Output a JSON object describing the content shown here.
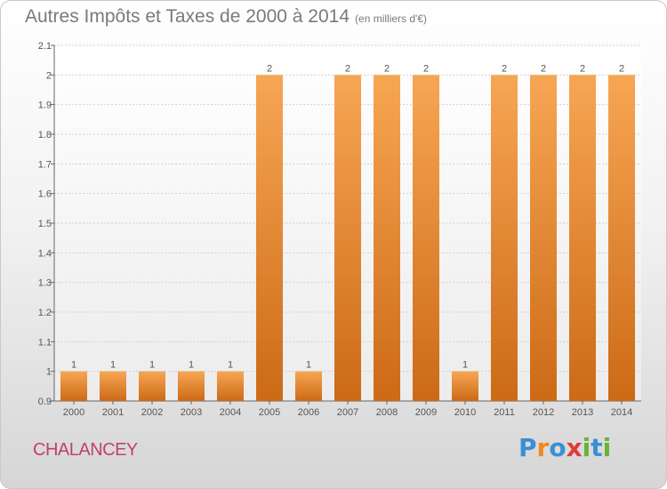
{
  "title": "Autres Impôts et Taxes de 2000 à 2014",
  "subtitle": "(en milliers d'€)",
  "commune": "CHALANCEY",
  "logo": {
    "text": "Proxiti",
    "letters": [
      {
        "ch": "P",
        "color": "#3a8fd6"
      },
      {
        "ch": "r",
        "color": "#f08a1c"
      },
      {
        "ch": "o",
        "color": "#3a8fd6"
      },
      {
        "ch": "x",
        "color": "#e03a3a"
      },
      {
        "ch": "i",
        "color": "#6ab23a"
      },
      {
        "ch": "t",
        "color": "#3a8fd6"
      },
      {
        "ch": "i",
        "color": "#6ab23a"
      }
    ]
  },
  "colors": {
    "bar_top": "#f7a654",
    "bar_bottom": "#cc6a16",
    "grid": "#cfcfcf",
    "axis_text": "#555555"
  },
  "chart_data": {
    "type": "bar",
    "title": "Autres Impôts et Taxes de 2000 à 2014",
    "subtitle": "(en milliers d'€)",
    "categories": [
      "2000",
      "2001",
      "2002",
      "2003",
      "2004",
      "2005",
      "2006",
      "2007",
      "2008",
      "2009",
      "2010",
      "2011",
      "2012",
      "2013",
      "2014"
    ],
    "values": [
      1,
      1,
      1,
      1,
      1,
      2,
      1,
      2,
      2,
      2,
      1,
      2,
      2,
      2,
      2
    ],
    "data_labels": [
      "1",
      "1",
      "1",
      "1",
      "1",
      "2",
      "1",
      "2",
      "2",
      "2",
      "1",
      "2",
      "2",
      "2",
      "2"
    ],
    "ylim": [
      0.9,
      2.1
    ],
    "yticks": [
      0.9,
      1,
      1.1,
      1.2,
      1.3,
      1.4,
      1.5,
      1.6,
      1.7,
      1.8,
      1.9,
      2,
      2.1
    ],
    "ytick_labels": [
      "0.9",
      "1",
      "1.1",
      "1.2",
      "1.3",
      "1.4",
      "1.5",
      "1.6",
      "1.7",
      "1.8",
      "1.9",
      "2",
      "2.1"
    ],
    "grid": true,
    "xlabel": "",
    "ylabel": ""
  }
}
